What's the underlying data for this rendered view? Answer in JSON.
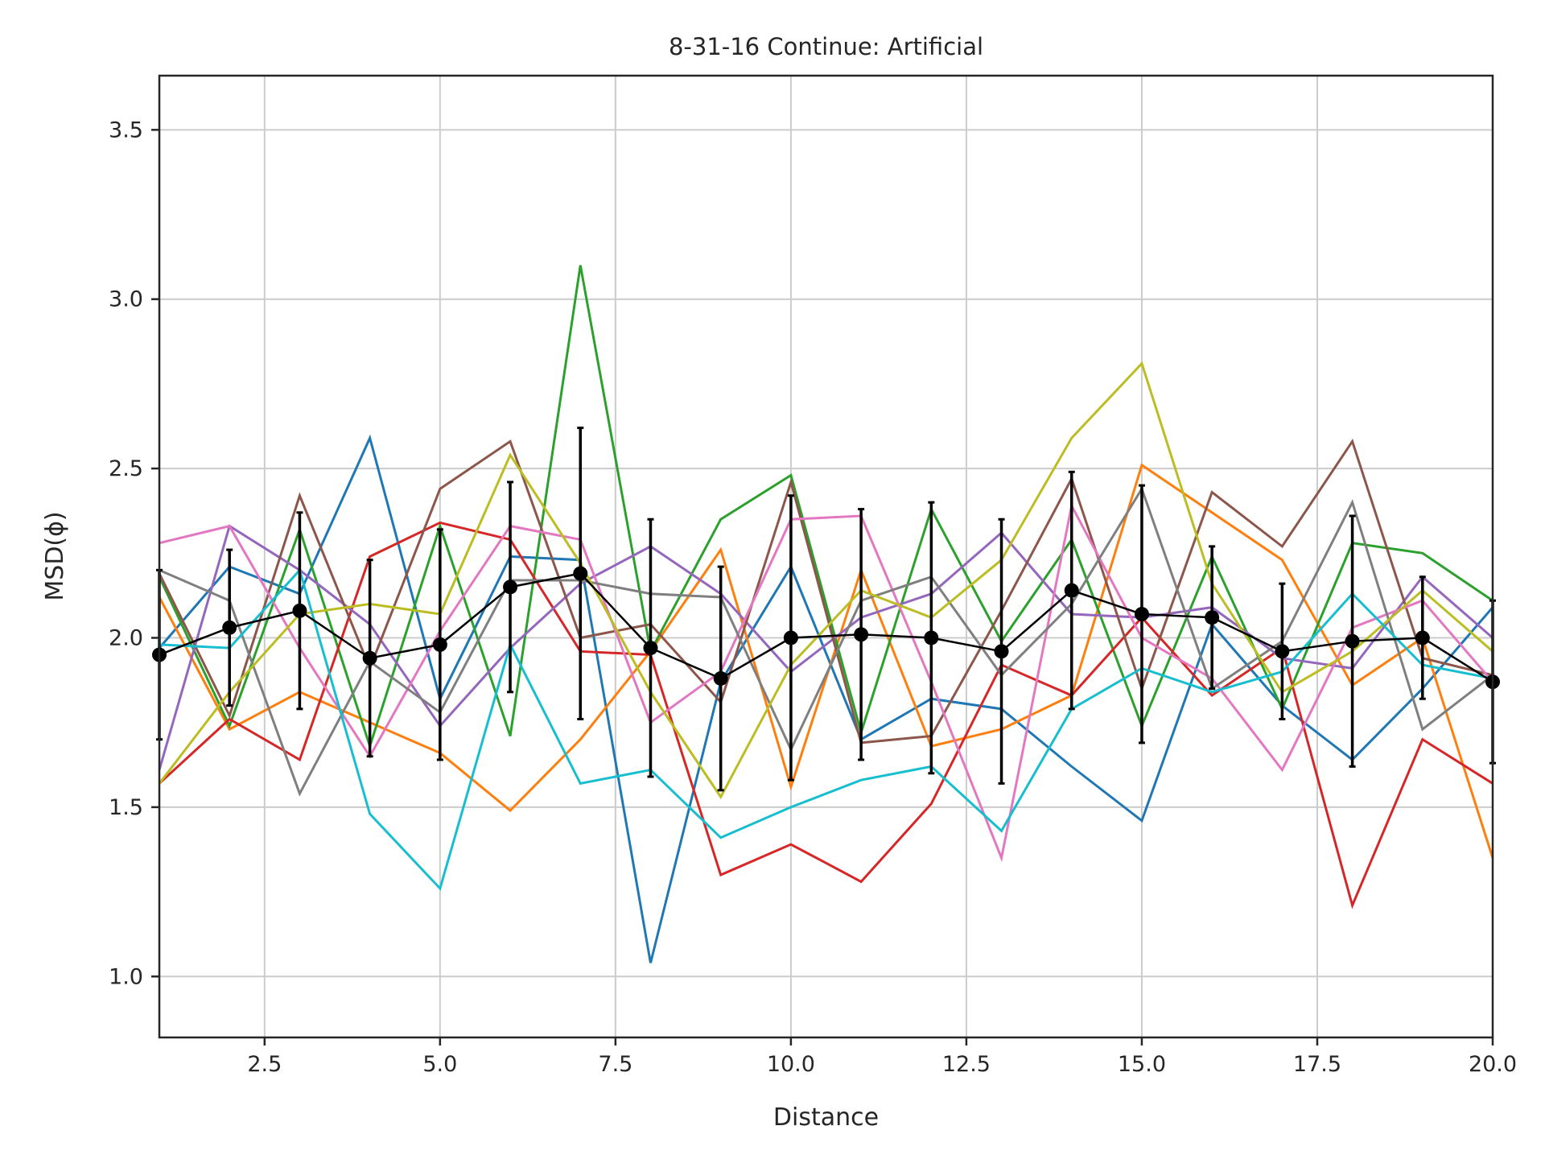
{
  "chart_data": {
    "type": "line",
    "title": "8-31-16 Continue: Artificial",
    "xlabel": "Distance",
    "ylabel": "MSD(ϕ)",
    "xlim": [
      1,
      20
    ],
    "ylim": [
      0.82,
      3.66
    ],
    "xticks": [
      2.5,
      5.0,
      7.5,
      10.0,
      12.5,
      15.0,
      17.5,
      20.0
    ],
    "xtick_labels": [
      "2.5",
      "5.0",
      "7.5",
      "10.0",
      "12.5",
      "15.0",
      "17.5",
      "20.0"
    ],
    "yticks": [
      1.0,
      1.5,
      2.0,
      2.5,
      3.0,
      3.5
    ],
    "ytick_labels": [
      "1.0",
      "1.5",
      "2.0",
      "2.5",
      "3.0",
      "3.5"
    ],
    "grid": true,
    "legend": "none",
    "x": [
      1,
      2,
      3,
      4,
      5,
      6,
      7,
      8,
      9,
      10,
      11,
      12,
      13,
      14,
      15,
      16,
      17,
      18,
      19,
      20
    ],
    "series": [
      {
        "color": "#1f77b4",
        "values": [
          1.97,
          2.21,
          2.13,
          2.59,
          1.82,
          2.24,
          2.23,
          1.04,
          1.87,
          2.21,
          1.7,
          1.82,
          1.79,
          1.62,
          1.46,
          2.04,
          1.8,
          1.64,
          1.85,
          2.09
        ]
      },
      {
        "color": "#ff7f0e",
        "values": [
          2.12,
          1.73,
          1.84,
          1.75,
          1.66,
          1.49,
          1.7,
          1.96,
          2.26,
          1.56,
          2.2,
          1.68,
          1.73,
          1.83,
          2.51,
          2.37,
          2.23,
          1.86,
          2.0,
          1.35
        ]
      },
      {
        "color": "#2ca02c",
        "values": [
          2.18,
          1.74,
          2.32,
          1.68,
          2.33,
          1.71,
          3.1,
          1.96,
          2.35,
          2.48,
          1.72,
          2.38,
          1.99,
          2.29,
          1.74,
          2.24,
          1.79,
          2.28,
          2.25,
          2.11
        ]
      },
      {
        "color": "#d62728",
        "values": [
          1.57,
          1.76,
          1.64,
          2.24,
          2.34,
          2.29,
          1.96,
          1.95,
          1.3,
          1.39,
          1.28,
          1.51,
          1.92,
          1.83,
          2.06,
          1.83,
          1.97,
          1.21,
          1.7,
          1.57
        ]
      },
      {
        "color": "#9467bd",
        "values": [
          1.61,
          2.33,
          2.2,
          2.04,
          1.74,
          1.97,
          2.16,
          2.27,
          2.13,
          1.9,
          2.06,
          2.13,
          2.31,
          2.07,
          2.06,
          2.09,
          1.94,
          1.91,
          2.18,
          2.0
        ]
      },
      {
        "color": "#8c564b",
        "values": [
          2.19,
          1.77,
          2.42,
          1.91,
          2.44,
          2.58,
          2.0,
          2.04,
          1.81,
          2.46,
          1.69,
          1.71,
          2.08,
          2.47,
          1.85,
          2.43,
          2.27,
          2.58,
          1.94,
          1.89
        ]
      },
      {
        "color": "#e377c2",
        "values": [
          2.28,
          2.33,
          1.97,
          1.65,
          2.02,
          2.33,
          2.29,
          1.75,
          1.9,
          2.35,
          2.36,
          1.87,
          1.35,
          2.39,
          2.0,
          1.88,
          1.61,
          2.03,
          2.11,
          1.87
        ]
      },
      {
        "color": "#7f7f7f",
        "values": [
          2.2,
          2.11,
          1.54,
          1.93,
          1.78,
          2.17,
          2.17,
          2.13,
          2.12,
          1.67,
          2.11,
          2.18,
          1.89,
          2.1,
          2.44,
          1.85,
          1.99,
          2.4,
          1.73,
          1.89
        ]
      },
      {
        "color": "#bcbd22",
        "values": [
          1.57,
          1.84,
          2.07,
          2.1,
          2.07,
          2.54,
          2.22,
          1.84,
          1.53,
          1.92,
          2.14,
          2.06,
          2.23,
          2.59,
          2.81,
          2.16,
          1.84,
          1.96,
          2.14,
          1.96
        ]
      },
      {
        "color": "#17becf",
        "values": [
          1.98,
          1.97,
          2.2,
          1.48,
          1.26,
          1.98,
          1.57,
          1.61,
          1.41,
          1.5,
          1.58,
          1.62,
          1.43,
          1.79,
          1.91,
          1.84,
          1.9,
          2.13,
          1.92,
          1.88
        ]
      },
      {
        "color": "#000000",
        "name": "",
        "values": [
          1.95,
          2.03,
          2.08,
          1.94,
          1.98,
          2.15,
          2.19,
          1.97,
          1.88,
          2.0,
          2.01,
          2.0,
          1.96,
          2.14,
          2.07,
          2.06,
          1.96,
          1.99,
          2.0,
          1.87
        ],
        "errors": [
          0.25,
          0.23,
          0.29,
          0.29,
          0.34,
          0.31,
          0.43,
          0.38,
          0.33,
          0.42,
          0.37,
          0.4,
          0.39,
          0.35,
          0.38,
          0.21,
          0.2,
          0.37,
          0.18,
          0.24
        ]
      }
    ]
  },
  "colors": {
    "grid": "#cccccc",
    "axes": "#262626",
    "background": "#ffffff",
    "mean_line": "#000000"
  }
}
